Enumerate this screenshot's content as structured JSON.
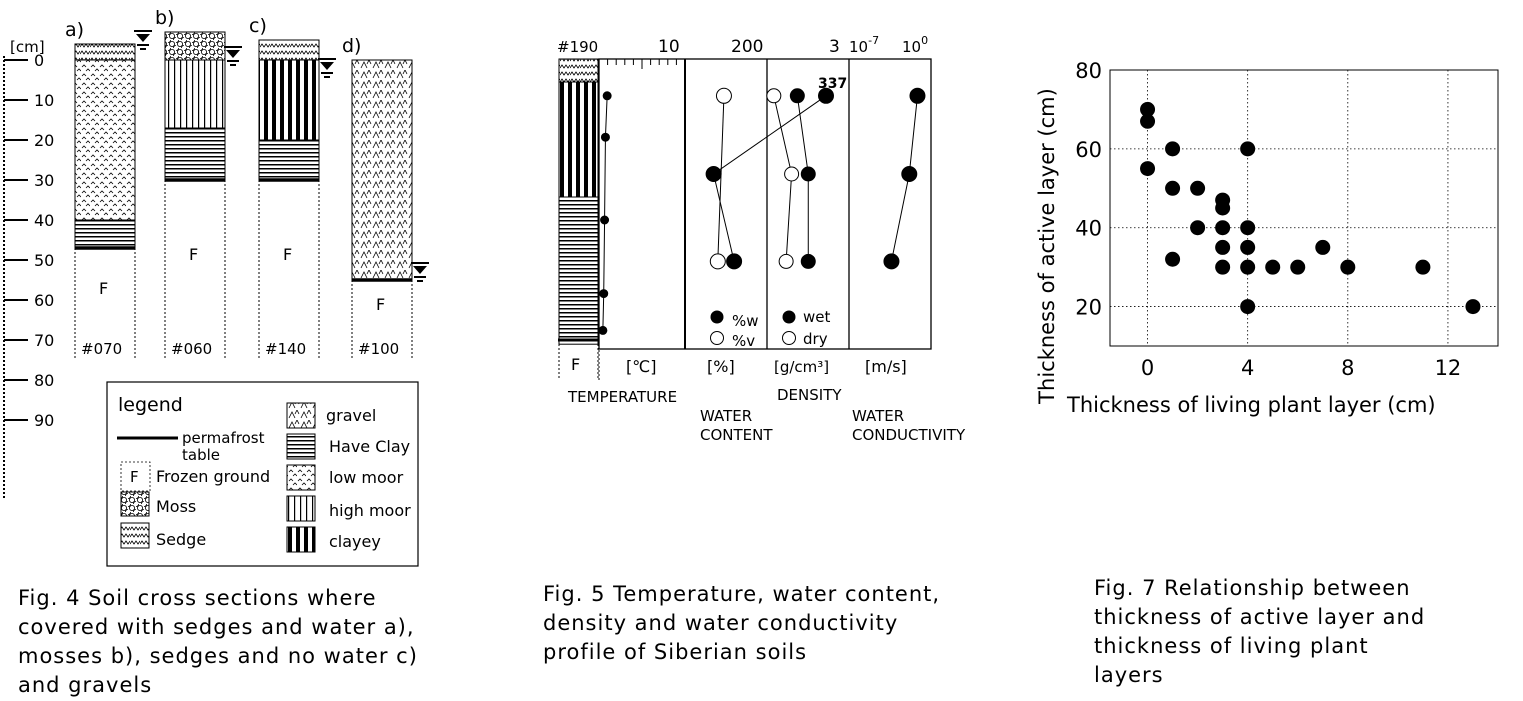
{
  "fig4": {
    "axis_unit": "[cm]",
    "depth_ticks": [
      "0",
      "10",
      "20",
      "30",
      "40",
      "50",
      "60",
      "70",
      "80",
      "90"
    ],
    "columns": [
      {
        "letter": "a)",
        "site": "#070",
        "frozen": "F",
        "layers": [
          {
            "type": "sedge",
            "top": -4,
            "bottom": 0
          },
          {
            "type": "low moor",
            "top": 0,
            "bottom": 40
          },
          {
            "type": "Have Clay",
            "top": 40,
            "bottom": 47
          }
        ],
        "permafrost_table": 47,
        "water_level": -4
      },
      {
        "letter": "b)",
        "site": "#060",
        "frozen": "F",
        "layers": [
          {
            "type": "moss",
            "top": -7,
            "bottom": 0
          },
          {
            "type": "high moor",
            "top": 0,
            "bottom": 17
          },
          {
            "type": "Have Clay",
            "top": 17,
            "bottom": 30
          }
        ],
        "permafrost_table": 30,
        "water_level": 0
      },
      {
        "letter": "c)",
        "site": "#140",
        "frozen": "F",
        "layers": [
          {
            "type": "sedge",
            "top": -5,
            "bottom": 0
          },
          {
            "type": "clayey",
            "top": 0,
            "bottom": 20
          },
          {
            "type": "Have Clay",
            "top": 20,
            "bottom": 30
          }
        ],
        "permafrost_table": 30,
        "water_level": 3
      },
      {
        "letter": "d)",
        "site": "#100",
        "frozen": "F",
        "layers": [
          {
            "type": "gravel",
            "top": 0,
            "bottom": 55
          }
        ],
        "permafrost_table": 55,
        "water_level": 54
      }
    ],
    "legend": {
      "title": "legend",
      "permafrost_1": "permafrost",
      "permafrost_2": "table",
      "frozen_letter": "F",
      "frozen": "Frozen ground",
      "moss": "Moss",
      "sedge": "Sedge",
      "gravel": "gravel",
      "clay": "Have Clay",
      "low_moor": "low moor",
      "high_moor": "high moor",
      "clayey": "clayey"
    },
    "caption": "Fig. 4 Soil cross sections where\ncovered with sedges and water a),\nmosses b), sedges and no water c)\nand gravels"
  },
  "fig5": {
    "site": "#190",
    "frozen": "F",
    "soil_layers": [
      {
        "type": "sedge",
        "top": 0,
        "bottom": 5
      },
      {
        "type": "clayey",
        "top": 5,
        "bottom": 30
      },
      {
        "type": "Have Clay",
        "top": 30,
        "bottom": 62
      }
    ],
    "top_ticks": {
      "temp_max": "10",
      "water_max": "200",
      "density_max": "3",
      "cond_min": "10",
      "cond_min_exp": "-7",
      "cond_max": "10",
      "cond_max_exp": "0"
    },
    "units": {
      "temp": "[℃]",
      "water": "[%]",
      "density": "[g/cm³]",
      "cond": "[m/s]"
    },
    "labels": {
      "temp": "TEMPERATURE",
      "water_1": "WATER",
      "water_2": "CONTENT",
      "density": "DENSITY",
      "cond_1": "WATER",
      "cond_2": "CONDUCTIVITY"
    },
    "keys": {
      "w": "%w",
      "v": "%v",
      "wet": "wet",
      "dry": "dry"
    },
    "annotation": "337",
    "temperature": [
      {
        "depth": 8,
        "value": 0.6
      },
      {
        "depth": 17,
        "value": 0.4
      },
      {
        "depth": 35,
        "value": 0.3
      },
      {
        "depth": 51,
        "value": 0.2
      },
      {
        "depth": 59,
        "value": 0.1
      }
    ],
    "water_w": [
      {
        "depth": 8,
        "value": 337
      },
      {
        "depth": 25,
        "value": 60
      },
      {
        "depth": 44,
        "value": 110
      }
    ],
    "water_v": [
      {
        "depth": 8,
        "value": 95
      },
      {
        "depth": 44,
        "value": 80
      }
    ],
    "density_wet": [
      {
        "depth": 8,
        "value": 1.0
      },
      {
        "depth": 25,
        "value": 1.4
      },
      {
        "depth": 44,
        "value": 1.4
      }
    ],
    "density_dry": [
      {
        "depth": 8,
        "value": 0.25
      },
      {
        "depth": 25,
        "value": 0.9
      },
      {
        "depth": 44,
        "value": 0.7
      }
    ],
    "conductivity": [
      {
        "depth": 8,
        "value": 0.5
      },
      {
        "depth": 25,
        "value": 0.1
      },
      {
        "depth": 44,
        "value": 0.003
      }
    ],
    "caption": "Fig. 5 Temperature, water content,\ndensity and water conductivity\nprofile of Siberian soils"
  },
  "chart_data": {
    "type": "scatter",
    "xlabel": "Thickness of living plant layer (cm)",
    "ylabel": "Thickness of active layer (cm)",
    "xlim": [
      -1.5,
      14
    ],
    "ylim": [
      10,
      80
    ],
    "xticks": [
      0,
      4,
      8,
      12
    ],
    "yticks": [
      20,
      40,
      60,
      80
    ],
    "grid": true,
    "points": [
      {
        "x": 0,
        "y": 70
      },
      {
        "x": 0,
        "y": 67
      },
      {
        "x": 0,
        "y": 55
      },
      {
        "x": 1,
        "y": 60
      },
      {
        "x": 1,
        "y": 50
      },
      {
        "x": 1,
        "y": 32
      },
      {
        "x": 2,
        "y": 50
      },
      {
        "x": 2,
        "y": 40
      },
      {
        "x": 3,
        "y": 47
      },
      {
        "x": 3,
        "y": 45
      },
      {
        "x": 3,
        "y": 40
      },
      {
        "x": 3,
        "y": 35
      },
      {
        "x": 3,
        "y": 30
      },
      {
        "x": 4,
        "y": 60
      },
      {
        "x": 4,
        "y": 40
      },
      {
        "x": 4,
        "y": 35
      },
      {
        "x": 4,
        "y": 30
      },
      {
        "x": 4,
        "y": 20
      },
      {
        "x": 5,
        "y": 30
      },
      {
        "x": 6,
        "y": 30
      },
      {
        "x": 7,
        "y": 35
      },
      {
        "x": 8,
        "y": 30
      },
      {
        "x": 11,
        "y": 30
      },
      {
        "x": 13,
        "y": 20
      }
    ],
    "caption": "Fig. 7  Relationship between\nthickness of active layer and\nthickness of living plant\nlayers"
  }
}
